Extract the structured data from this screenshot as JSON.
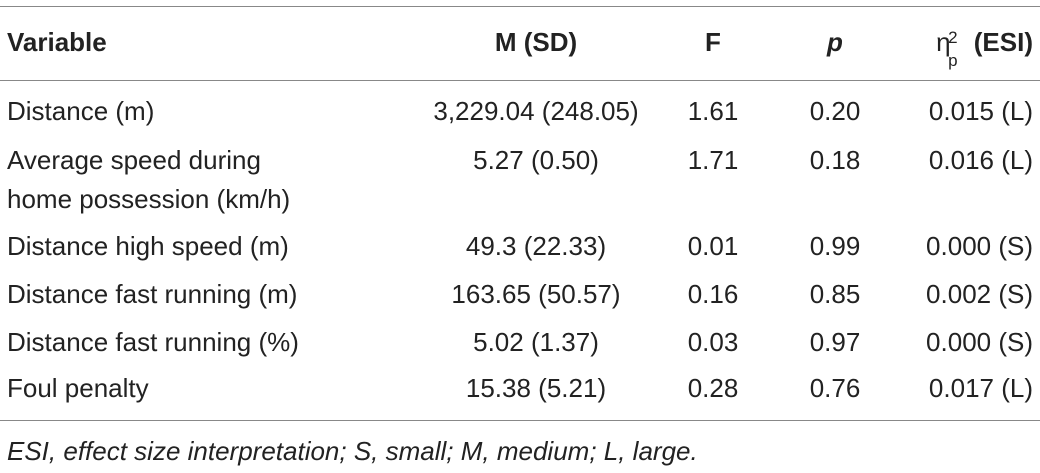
{
  "table": {
    "headers": {
      "variable": "Variable",
      "m_sd": "M (SD)",
      "f": "F",
      "p": "p",
      "eta_symbol": "η",
      "eta_sup": "2",
      "eta_sub": "p",
      "esi": "(ESI)"
    },
    "rows": [
      {
        "variable": "Distance (m)",
        "m_sd": "3,229.04 (248.05)",
        "f": "1.61",
        "p": "0.20",
        "esi": "0.015 (L)"
      },
      {
        "variable": "Average speed during",
        "variable_line2": "home possession (km/h)",
        "m_sd": "5.27 (0.50)",
        "f": "1.71",
        "p": "0.18",
        "esi": "0.016 (L)"
      },
      {
        "variable": "Distance high speed (m)",
        "m_sd": "49.3 (22.33)",
        "f": "0.01",
        "p": "0.99",
        "esi": "0.000 (S)"
      },
      {
        "variable": "Distance fast running (m)",
        "m_sd": "163.65 (50.57)",
        "f": "0.16",
        "p": "0.85",
        "esi": "0.002 (S)"
      },
      {
        "variable": "Distance fast running (%)",
        "m_sd": "5.02 (1.37)",
        "f": "0.03",
        "p": "0.97",
        "esi": "0.000 (S)"
      },
      {
        "variable": "Foul penalty",
        "m_sd": "15.38 (5.21)",
        "f": "0.28",
        "p": "0.76",
        "esi": "0.017 (L)"
      }
    ],
    "footnote": "ESI, effect size interpretation; S, small; M, medium; L, large."
  }
}
